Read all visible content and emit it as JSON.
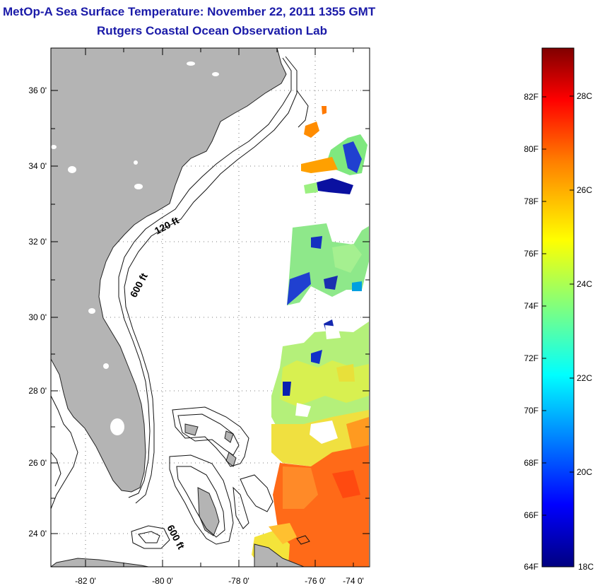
{
  "header": {
    "title": "MetOp-A Sea Surface Temperature:  November 22, 2011 1355 GMT",
    "subtitle": "Rutgers Coastal Ocean Observation Lab"
  },
  "map": {
    "lat_labels": [
      "36 0'",
      "34 0'",
      "32 0'",
      "30 0'",
      "28 0'",
      "26 0'",
      "24 0'"
    ],
    "lon_labels": [
      "-82 0'",
      "-80 0'",
      "-78 0'",
      "-76 0'",
      "-74 0'"
    ],
    "contour_labels": [
      "120 ft",
      "600 ft",
      "600 ft"
    ],
    "land_color": "#b4b4b4"
  },
  "colorbar": {
    "f_labels": [
      "82F",
      "80F",
      "78F",
      "76F",
      "74F",
      "72F",
      "70F",
      "68F",
      "66F",
      "64F"
    ],
    "c_labels": [
      "28C",
      "26C",
      "24C",
      "22C",
      "20C",
      "18C"
    ],
    "colors": [
      "#000080",
      "#0000ff",
      "#00ffff",
      "#7fff7f",
      "#ffff00",
      "#ff8000",
      "#ff0000",
      "#800000"
    ]
  }
}
